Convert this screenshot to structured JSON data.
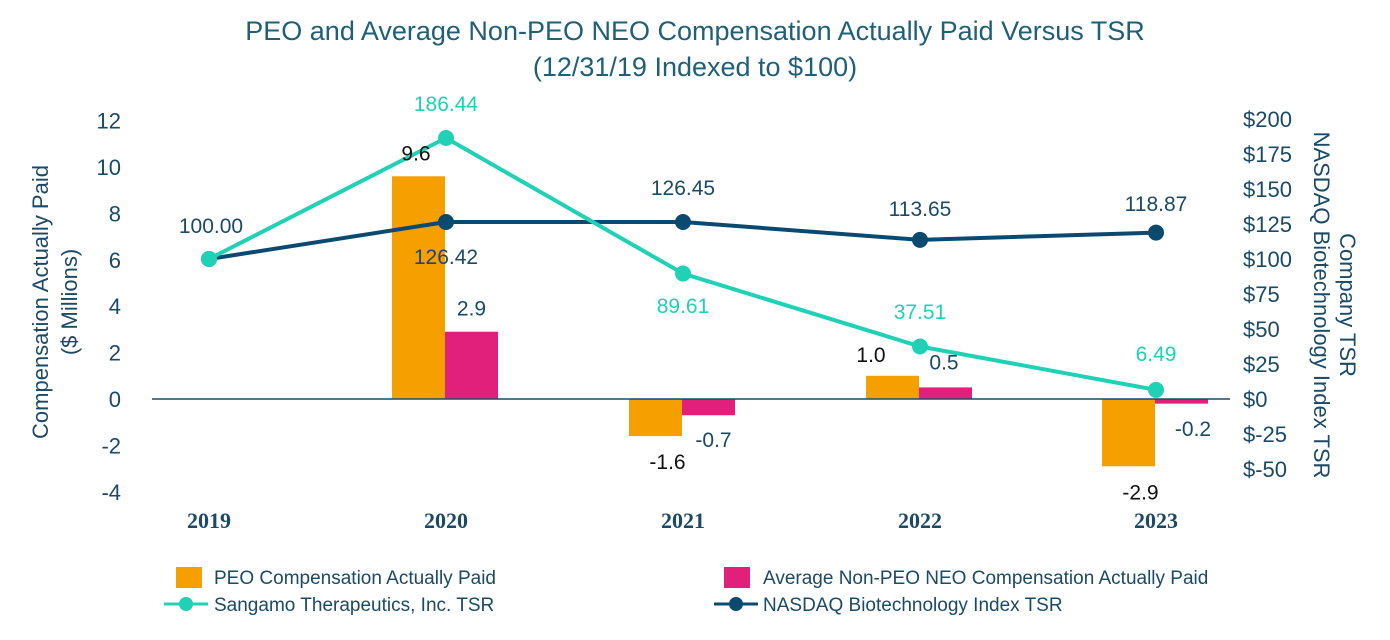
{
  "chart_data": {
    "type": "bar",
    "title": "PEO and Average Non-PEO NEO Compensation Actually Paid Versus TSR",
    "subtitle": "(12/31/19 Indexed to $100)",
    "categories": [
      "2019",
      "2020",
      "2021",
      "2022",
      "2023"
    ],
    "ylabel_left": [
      "Compensation Actually Paid",
      "($ Millions)"
    ],
    "ylabel_right": [
      "Company TSR",
      "NASDAQ Biotechnology Index TSR"
    ],
    "ylim_left": [
      -4,
      12
    ],
    "ylim_right": [
      -50,
      200
    ],
    "left_ticks": [
      "12",
      "10",
      "8",
      "6",
      "4",
      "2",
      "0",
      "-2",
      "-4"
    ],
    "right_ticks": [
      "$200",
      "$175",
      "$150",
      "$125",
      "$100",
      "$75",
      "$50",
      "$25",
      "$0",
      "$-25",
      "$-50"
    ],
    "bar_series": [
      {
        "name": "PEO Compensation Actually Paid",
        "color": "#f5a000",
        "values": [
          null,
          9.6,
          -1.6,
          1.0,
          -2.9
        ],
        "labels": [
          "",
          "9.6",
          "-1.6",
          "1.0",
          "-2.9"
        ]
      },
      {
        "name": "Average Non-PEO NEO Compensation Actually Paid",
        "color": "#e0207a",
        "values": [
          null,
          2.9,
          -0.7,
          0.5,
          -0.2
        ],
        "labels": [
          "",
          "2.9",
          "-0.7",
          "0.5",
          "-0.2"
        ]
      }
    ],
    "line_series": [
      {
        "name": "Sangamo Therapeutics, Inc. TSR",
        "color": "#1fd1b5",
        "label_color": "#1fd1b5",
        "values": [
          100.0,
          186.44,
          89.61,
          37.51,
          6.49
        ],
        "labels": [
          "",
          "186.44",
          "89.61",
          "37.51",
          "6.49"
        ]
      },
      {
        "name": "NASDAQ Biotechnology Index TSR",
        "color": "#0b4a70",
        "label_color": "#1a4a66",
        "values": [
          100.0,
          126.42,
          126.45,
          113.65,
          118.87
        ],
        "labels": [
          "100.00",
          "126.42",
          "126.45",
          "113.65",
          "118.87"
        ]
      }
    ]
  },
  "colors": {
    "title": "#1f5f78",
    "axis_text": "#1a4a66",
    "zero_line": "#1a4a66"
  }
}
